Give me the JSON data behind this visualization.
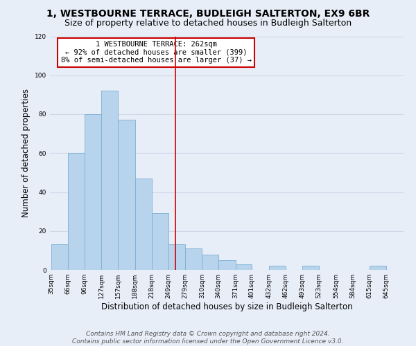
{
  "title": "1, WESTBOURNE TERRACE, BUDLEIGH SALTERTON, EX9 6BR",
  "subtitle": "Size of property relative to detached houses in Budleigh Salterton",
  "xlabel": "Distribution of detached houses by size in Budleigh Salterton",
  "ylabel": "Number of detached properties",
  "bin_labels": [
    "35sqm",
    "66sqm",
    "96sqm",
    "127sqm",
    "157sqm",
    "188sqm",
    "218sqm",
    "249sqm",
    "279sqm",
    "310sqm",
    "340sqm",
    "371sqm",
    "401sqm",
    "432sqm",
    "462sqm",
    "493sqm",
    "523sqm",
    "554sqm",
    "584sqm",
    "615sqm",
    "645sqm"
  ],
  "bin_edges": [
    35,
    66,
    96,
    127,
    157,
    188,
    218,
    249,
    279,
    310,
    340,
    371,
    401,
    432,
    462,
    493,
    523,
    554,
    584,
    615,
    645
  ],
  "counts": [
    13,
    60,
    80,
    92,
    77,
    47,
    29,
    13,
    11,
    8,
    5,
    3,
    0,
    2,
    0,
    2,
    0,
    0,
    0,
    2
  ],
  "bar_color": "#b8d4ec",
  "bar_edge_color": "#7aafd4",
  "property_size": 262,
  "vline_color": "#cc0000",
  "annotation_text_line1": "1 WESTBOURNE TERRACE: 262sqm",
  "annotation_text_line2": "← 92% of detached houses are smaller (399)",
  "annotation_text_line3": "8% of semi-detached houses are larger (37) →",
  "annotation_box_color": "#ffffff",
  "annotation_box_edge_color": "#cc0000",
  "ylim": [
    0,
    120
  ],
  "yticks": [
    0,
    20,
    40,
    60,
    80,
    100,
    120
  ],
  "footer_line1": "Contains HM Land Registry data © Crown copyright and database right 2024.",
  "footer_line2": "Contains public sector information licensed under the Open Government Licence v3.0.",
  "background_color": "#e8eef8",
  "grid_color": "#d0d8e8",
  "title_fontsize": 10,
  "subtitle_fontsize": 9,
  "axis_label_fontsize": 8.5,
  "tick_fontsize": 6.5,
  "footer_fontsize": 6.5,
  "annot_fontsize": 7.5
}
